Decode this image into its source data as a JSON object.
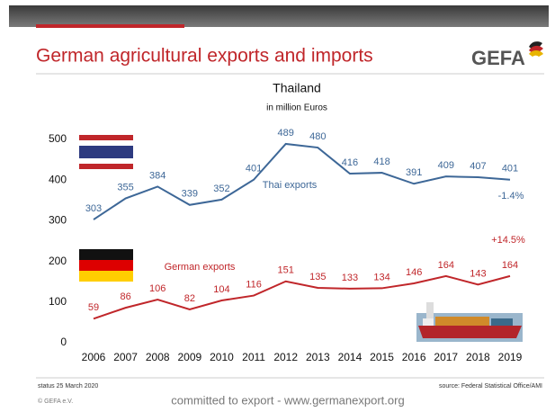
{
  "chart_data": {
    "type": "line",
    "title": "German agricultural exports and imports",
    "subtitle": "Thailand",
    "unit": "in million Euros",
    "categories": [
      "2006",
      "2007",
      "2008",
      "2009",
      "2010",
      "2011",
      "2012",
      "2013",
      "2014",
      "2015",
      "2016",
      "2017",
      "2018",
      "2019"
    ],
    "series": [
      {
        "name": "Thai exports",
        "color": "#3d6797",
        "values": [
          303,
          355,
          384,
          339,
          352,
          401,
          489,
          480,
          416,
          418,
          391,
          409,
          407,
          401
        ]
      },
      {
        "name": "German exports",
        "color": "#c0262a",
        "values": [
          59,
          86,
          106,
          82,
          104,
          116,
          151,
          135,
          133,
          134,
          146,
          164,
          143,
          164
        ]
      }
    ],
    "annotations": [
      "-1.4%",
      "+14.5%"
    ],
    "ylim": [
      0,
      500
    ],
    "yticks": [
      0,
      100,
      200,
      300,
      400,
      500
    ],
    "grid": false
  },
  "logo": "GEFA",
  "status": "status 25 March 2020",
  "source": "source: Federal Statistical Office/AMI",
  "copyright": "© GEFA e.V.",
  "slogan": "committed to export - www.germanexport.org"
}
